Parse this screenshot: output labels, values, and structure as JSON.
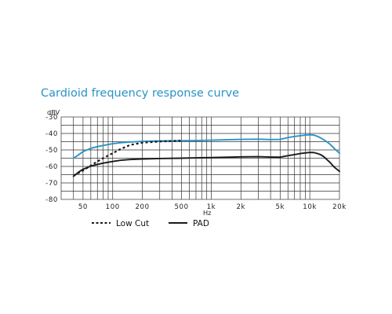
{
  "chart_data": {
    "type": "line",
    "title": "Cardioid frequency response curve",
    "ylabel": "dBV",
    "xlabel": "Hz",
    "x_scale": "log",
    "xlim": [
      30,
      20000
    ],
    "ylim": [
      -80,
      -30
    ],
    "grid": true,
    "legend_position": "bottom-left",
    "y_ticks": [
      {
        "value": -30,
        "label": "-30"
      },
      {
        "value": -40,
        "label": "-40"
      },
      {
        "value": -50,
        "label": "-50"
      },
      {
        "value": -60,
        "label": "-60"
      },
      {
        "value": -70,
        "label": "-70"
      },
      {
        "value": -80,
        "label": "-80"
      }
    ],
    "x_ticks": [
      {
        "value": 50,
        "label": "50"
      },
      {
        "value": 100,
        "label": "100"
      },
      {
        "value": 200,
        "label": "200"
      },
      {
        "value": 500,
        "label": "500"
      },
      {
        "value": 1000,
        "label": "1k"
      },
      {
        "value": 2000,
        "label": "2k"
      },
      {
        "value": 5000,
        "label": "5k"
      },
      {
        "value": 10000,
        "label": "10k"
      },
      {
        "value": 20000,
        "label": "20k"
      }
    ],
    "series": [
      {
        "color": "#2a93c6",
        "style": "solid",
        "x": [
          40,
          45,
          50,
          60,
          70,
          80,
          100,
          120,
          150,
          200,
          300,
          500,
          700,
          1000,
          1500,
          2000,
          3000,
          4000,
          5000,
          6000,
          7000,
          8000,
          9000,
          10000,
          11000,
          12000,
          13000,
          14000,
          15000,
          16000,
          17000,
          18000,
          20000
        ],
        "values": [
          -55,
          -53,
          -51,
          -49,
          -48,
          -47.3,
          -46.2,
          -45.6,
          -45.2,
          -44.8,
          -44.5,
          -44.4,
          -44.3,
          -44.1,
          -43.8,
          -43.6,
          -43.5,
          -43.7,
          -43.6,
          -42.5,
          -41.8,
          -41.4,
          -41,
          -40.8,
          -41,
          -41.8,
          -42.8,
          -44,
          -45.2,
          -46.5,
          -48,
          -49.5,
          -52
        ]
      },
      {
        "color": "#1a1a1a",
        "style": "solid",
        "x": [
          40,
          45,
          50,
          60,
          70,
          80,
          100,
          120,
          150,
          200,
          300,
          500,
          700,
          1000,
          1500,
          2000,
          3000,
          4000,
          5000,
          6000,
          7000,
          8000,
          9000,
          10000,
          11000,
          12000,
          13000,
          14000,
          15000,
          16000,
          17000,
          18000,
          20000
        ],
        "values": [
          -66,
          -63.5,
          -61.7,
          -59.8,
          -58.8,
          -58,
          -57,
          -56.3,
          -55.8,
          -55.5,
          -55.2,
          -55,
          -54.8,
          -54.6,
          -54.4,
          -54.2,
          -54.1,
          -54.3,
          -54.4,
          -53.5,
          -52.8,
          -52.2,
          -51.8,
          -51.5,
          -51.6,
          -52.2,
          -53,
          -54.3,
          -56,
          -57.5,
          -59.3,
          -60.8,
          -63
        ]
      },
      {
        "name": "Low Cut",
        "color": "#1a1a1a",
        "style": "dashed",
        "x": [
          40,
          45,
          50,
          60,
          70,
          80,
          100,
          120,
          150,
          200,
          300,
          400,
          500
        ],
        "values": [
          -65.5,
          -64,
          -62.5,
          -59.5,
          -57,
          -55,
          -52,
          -49.5,
          -47,
          -45.6,
          -44.9,
          -44.6,
          -44.4
        ]
      }
    ],
    "legend": [
      {
        "label": "Low Cut",
        "style": "dashed",
        "color": "#1a1a1a"
      },
      {
        "label": "PAD",
        "style": "solid",
        "color": "#1a1a1a"
      }
    ]
  }
}
